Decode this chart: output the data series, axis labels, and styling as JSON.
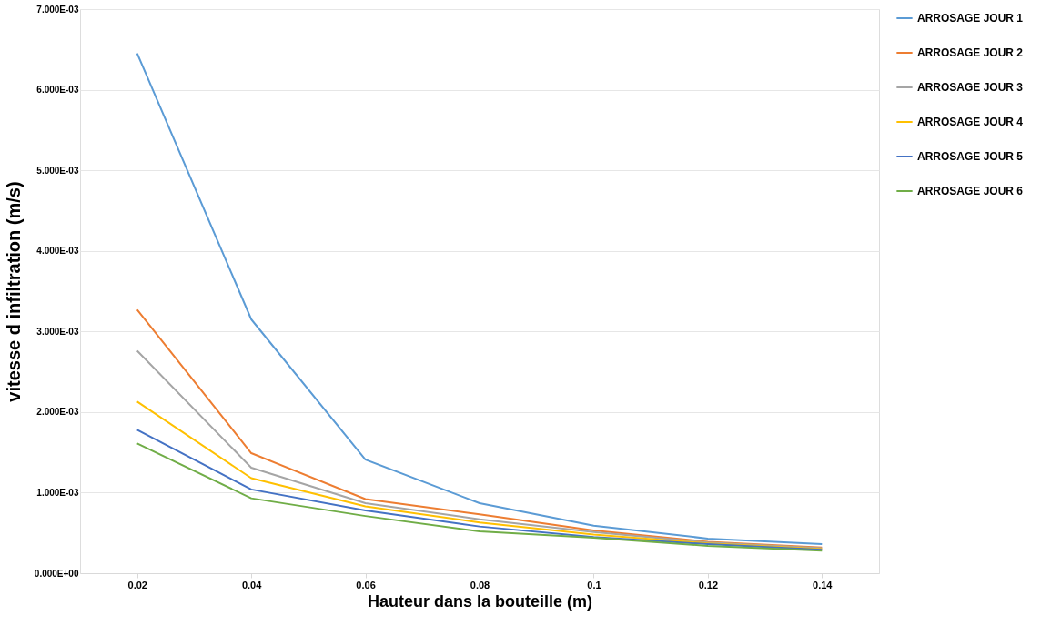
{
  "chart_data": {
    "type": "line",
    "xlabel": "Hauteur dans la bouteille  (m)",
    "ylabel": "vitesse d infiltration (m/s)",
    "categories": [
      "0.02",
      "0.04",
      "0.06",
      "0.08",
      "0.1",
      "0.12",
      "0.14"
    ],
    "ylim": [
      0,
      0.007
    ],
    "yticks": [
      {
        "value": 0,
        "label": "0.000E+00"
      },
      {
        "value": 0.001,
        "label": "1.000E-03"
      },
      {
        "value": 0.002,
        "label": "2.000E-03"
      },
      {
        "value": 0.003,
        "label": "3.000E-03"
      },
      {
        "value": 0.004,
        "label": "4.000E-03"
      },
      {
        "value": 0.005,
        "label": "5.000E-03"
      },
      {
        "value": 0.006,
        "label": "6.000E-03"
      },
      {
        "value": 0.007,
        "label": "7.000E-03"
      }
    ],
    "grid": "y",
    "legend": "right",
    "marker": "none",
    "line_style": "solid",
    "series": [
      {
        "name": "ARROSAGE JOUR 1",
        "color": "#5b9bd5",
        "values": [
          0.00645,
          0.00315,
          0.00141,
          0.00087,
          0.00059,
          0.00043,
          0.00036
        ]
      },
      {
        "name": "ARROSAGE JOUR 2",
        "color": "#ed7d31",
        "values": [
          0.00327,
          0.00149,
          0.00092,
          0.00073,
          0.00053,
          0.00039,
          0.00032
        ]
      },
      {
        "name": "ARROSAGE JOUR 3",
        "color": "#a5a5a5",
        "values": [
          0.00276,
          0.00131,
          0.00087,
          0.00067,
          0.00051,
          0.00038,
          0.00031
        ]
      },
      {
        "name": "ARROSAGE JOUR 4",
        "color": "#ffc000",
        "values": [
          0.00213,
          0.00118,
          0.00083,
          0.00063,
          0.00048,
          0.00037,
          0.0003
        ]
      },
      {
        "name": "ARROSAGE JOUR 5",
        "color": "#4472c4",
        "values": [
          0.00178,
          0.00104,
          0.00078,
          0.00058,
          0.00045,
          0.00036,
          0.00029
        ]
      },
      {
        "name": "ARROSAGE JOUR 6",
        "color": "#70ad47",
        "values": [
          0.00161,
          0.00093,
          0.00071,
          0.00052,
          0.00044,
          0.00034,
          0.00028
        ]
      }
    ]
  }
}
